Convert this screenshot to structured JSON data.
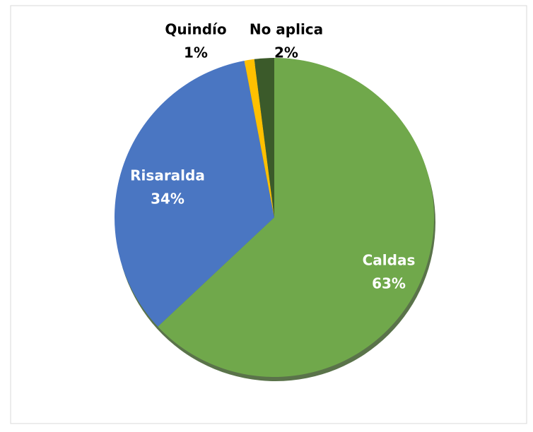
{
  "chart_data": {
    "type": "pie",
    "categories": [
      "Caldas",
      "Risaralda",
      "Quindío",
      "No aplica"
    ],
    "values": [
      63,
      34,
      1,
      2
    ],
    "value_labels": [
      "63%",
      "34%",
      "1%",
      "2%"
    ],
    "colors": [
      "#70a84b",
      "#4a76c2",
      "#ffc000",
      "#3b5a2a"
    ]
  }
}
